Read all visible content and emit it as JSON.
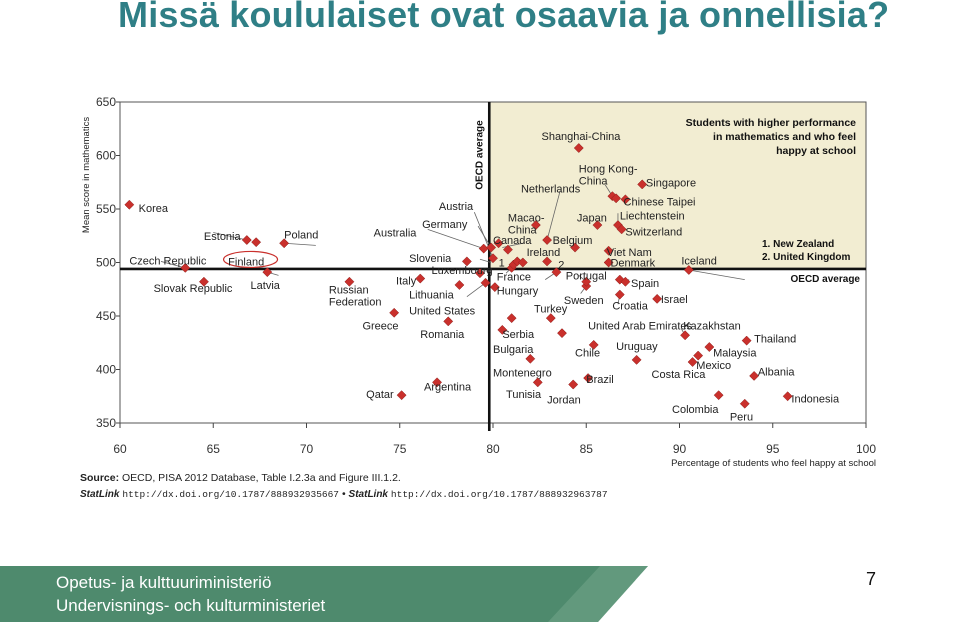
{
  "slide": {
    "title": "Missä koululaiset ovat osaavia ja onnellisia?",
    "page_number": "7",
    "ministry_fi": "Opetus- ja kulttuuriministeriö",
    "ministry_sv": "Undervisnings- och kulturministeriet"
  },
  "source": {
    "label": "Source:",
    "text": "OECD, PISA 2012 Database, Table I.2.3a and Figure III.1.2.",
    "statlink_label": "StatLink",
    "link1": "http://dx.doi.org/10.1787/888932935667",
    "separator": "•",
    "link2": "http://dx.doi.org/10.1787/888932963787"
  },
  "colors": {
    "title": "#2f7f86",
    "marker": "#c9302c",
    "quadrant_fill": "#f2edd2",
    "band": "#4e8a6d"
  },
  "chart_data": {
    "type": "scatter",
    "xlabel": "Percentage of students who feel happy at school",
    "ylabel": "Mean score in mathematics",
    "xlim": [
      60,
      100
    ],
    "ylim": [
      350,
      650
    ],
    "xticks": [
      60,
      65,
      70,
      75,
      80,
      85,
      90,
      95,
      100
    ],
    "yticks": [
      350,
      400,
      450,
      500,
      550,
      600,
      650
    ],
    "oecd_average_x": 79.8,
    "oecd_average_y": 494,
    "oecd_average_label_x": "OECD average",
    "oecd_average_label_y": "OECD average",
    "highlight_quadrant": "top-right",
    "quadrant_note": [
      "Students with higher performance",
      "in mathematics and who feel",
      "happy at school"
    ],
    "footnotes": [
      "1. New Zealand",
      "2. United Kingdom"
    ],
    "points": [
      {
        "x": 60.5,
        "y": 554,
        "label": "Korea",
        "lx": 61.0,
        "ly": 551
      },
      {
        "x": 63.5,
        "y": 495,
        "label": "Czech Republic",
        "lx": 60.5,
        "ly": 502
      },
      {
        "x": 64.5,
        "y": 482,
        "label": "Slovak Republic",
        "lx": 61.8,
        "ly": 476
      },
      {
        "x": 66.8,
        "y": 521,
        "label": "Estonia",
        "lx": 64.5,
        "ly": 525
      },
      {
        "x": 67.3,
        "y": 519,
        "label": "Finland",
        "lx": 65.8,
        "ly": 501
      },
      {
        "x": 67.9,
        "y": 491,
        "label": "Latvia",
        "lx": 67.0,
        "ly": 479
      },
      {
        "x": 68.8,
        "y": 518,
        "label": "Poland",
        "lx": 68.8,
        "ly": 526
      },
      {
        "x": 72.3,
        "y": 482,
        "label": "Russian Federation",
        "lx": 71.2,
        "ly": 475,
        "lines": [
          "Russian",
          "Federation"
        ]
      },
      {
        "x": 74.7,
        "y": 453,
        "label": "Greece",
        "lx": 73.0,
        "ly": 441
      },
      {
        "x": 75.1,
        "y": 376,
        "label": "Qatar",
        "lx": 73.2,
        "ly": 377
      },
      {
        "x": 76.1,
        "y": 485,
        "label": "Italy",
        "lx": 74.8,
        "ly": 483
      },
      {
        "x": 77.0,
        "y": 388,
        "label": "Argentina",
        "lx": 76.3,
        "ly": 384
      },
      {
        "x": 77.6,
        "y": 445,
        "label": "Romania",
        "lx": 76.1,
        "ly": 433
      },
      {
        "x": 78.2,
        "y": 479,
        "label": "Lithuania",
        "lx": 75.5,
        "ly": 470
      },
      {
        "x": 78.6,
        "y": 501,
        "label": "Slovenia",
        "lx": 75.5,
        "ly": 504
      },
      {
        "x": 79.5,
        "y": 513,
        "label": "Australia",
        "lx": 73.6,
        "ly": 528
      },
      {
        "x": 79.3,
        "y": 490,
        "label": "Luxembourg",
        "lx": 76.7,
        "ly": 493
      },
      {
        "x": 79.6,
        "y": 481,
        "label": "United States",
        "lx": 75.5,
        "ly": 455
      },
      {
        "x": 79.9,
        "y": 514,
        "label": "Germany",
        "lx": 76.2,
        "ly": 536
      },
      {
        "x": 80.0,
        "y": 504,
        "label": "Austria",
        "lx": 77.1,
        "ly": 553
      },
      {
        "x": 80.1,
        "y": 477,
        "label": "Hungary",
        "lx": 80.2,
        "ly": 474
      },
      {
        "x": 80.3,
        "y": 518,
        "label": "Canada",
        "lx": 80.0,
        "ly": 521
      },
      {
        "x": 80.5,
        "y": 437,
        "label": "Bulgaria",
        "lx": 80.0,
        "ly": 419
      },
      {
        "x": 81.0,
        "y": 495,
        "label": "France",
        "lx": 80.2,
        "ly": 487
      },
      {
        "x": 81.1,
        "y": 498,
        "label": "1",
        "lx": 80.3,
        "ly": 500
      },
      {
        "x": 81.0,
        "y": 448,
        "label": "Serbia",
        "lx": 80.5,
        "ly": 433
      },
      {
        "x": 81.3,
        "y": 501,
        "label": "Ireland",
        "lx": 81.8,
        "ly": 510
      },
      {
        "x": 81.6,
        "y": 500,
        "label": "",
        "lx": 0,
        "ly": 0
      },
      {
        "x": 80.8,
        "y": 512,
        "label": "",
        "lx": 0,
        "ly": 0
      },
      {
        "x": 82.0,
        "y": 410,
        "label": "Montenegro",
        "lx": 80.0,
        "ly": 397
      },
      {
        "x": 82.3,
        "y": 535,
        "label": "Macao-China",
        "lx": 80.8,
        "ly": 542,
        "lines": [
          "Macao-",
          "China"
        ]
      },
      {
        "x": 82.4,
        "y": 388,
        "label": "Tunisia",
        "lx": 80.7,
        "ly": 377
      },
      {
        "x": 82.9,
        "y": 521,
        "label": "Netherlands",
        "lx": 81.5,
        "ly": 569
      },
      {
        "x": 82.9,
        "y": 501,
        "label": "",
        "lx": 0,
        "ly": 0
      },
      {
        "x": 83.1,
        "y": 448,
        "label": "Turkey",
        "lx": 82.2,
        "ly": 457
      },
      {
        "x": 83.4,
        "y": 491,
        "label": "2",
        "lx": 83.5,
        "ly": 498
      },
      {
        "x": 83.7,
        "y": 434,
        "label": "United Arab Emirates",
        "lx": 85.1,
        "ly": 441
      },
      {
        "x": 84.3,
        "y": 386,
        "label": "Jordan",
        "lx": 82.9,
        "ly": 372
      },
      {
        "x": 84.4,
        "y": 514,
        "label": "Belgium",
        "lx": 83.2,
        "ly": 521
      },
      {
        "x": 84.6,
        "y": 607,
        "label": "Shanghai-China",
        "lx": 82.6,
        "ly": 618
      },
      {
        "x": 85.0,
        "y": 478,
        "label": "Sweden",
        "lx": 83.8,
        "ly": 465
      },
      {
        "x": 85.0,
        "y": 482,
        "label": "Portugal",
        "lx": 83.9,
        "ly": 488
      },
      {
        "x": 85.1,
        "y": 392,
        "label": "Brazil",
        "lx": 85.0,
        "ly": 391
      },
      {
        "x": 85.4,
        "y": 423,
        "label": "Chile",
        "lx": 84.4,
        "ly": 416
      },
      {
        "x": 85.6,
        "y": 535,
        "label": "Japan",
        "lx": 84.5,
        "ly": 542
      },
      {
        "x": 86.2,
        "y": 511,
        "label": "Viet Nam",
        "lx": 86.1,
        "ly": 510
      },
      {
        "x": 86.4,
        "y": 562,
        "label": "Hong Kong-China",
        "lx": 84.6,
        "ly": 588,
        "lines": [
          "Hong Kong-",
          "China"
        ]
      },
      {
        "x": 86.6,
        "y": 560,
        "label": "",
        "lx": 0,
        "ly": 0
      },
      {
        "x": 86.2,
        "y": 500,
        "label": "Denmark",
        "lx": 86.3,
        "ly": 500
      },
      {
        "x": 86.7,
        "y": 535,
        "label": "Liechtenstein",
        "lx": 86.8,
        "ly": 544
      },
      {
        "x": 86.9,
        "y": 531,
        "label": "Switzerland",
        "lx": 87.1,
        "ly": 529
      },
      {
        "x": 86.8,
        "y": 484,
        "label": "Spain",
        "lx": 87.4,
        "ly": 481
      },
      {
        "x": 86.8,
        "y": 470,
        "label": "Croatia",
        "lx": 86.4,
        "ly": 460
      },
      {
        "x": 87.1,
        "y": 482,
        "label": "",
        "lx": 0,
        "ly": 0
      },
      {
        "x": 87.1,
        "y": 559,
        "label": "Chinese Taipei",
        "lx": 87.0,
        "ly": 557
      },
      {
        "x": 87.7,
        "y": 409,
        "label": "Uruguay",
        "lx": 86.6,
        "ly": 422
      },
      {
        "x": 88.0,
        "y": 573,
        "label": "Singapore",
        "lx": 88.2,
        "ly": 575
      },
      {
        "x": 88.8,
        "y": 466,
        "label": "Israel",
        "lx": 89.0,
        "ly": 466
      },
      {
        "x": 90.5,
        "y": 493,
        "label": "Iceland",
        "lx": 90.1,
        "ly": 502
      },
      {
        "x": 90.3,
        "y": 432,
        "label": "Kazakhstan",
        "lx": 90.2,
        "ly": 441
      },
      {
        "x": 90.7,
        "y": 407,
        "label": "Costa Rica",
        "lx": 88.5,
        "ly": 396
      },
      {
        "x": 91.0,
        "y": 413,
        "label": "Mexico",
        "lx": 90.9,
        "ly": 404
      },
      {
        "x": 91.6,
        "y": 421,
        "label": "Malaysia",
        "lx": 91.8,
        "ly": 416
      },
      {
        "x": 92.1,
        "y": 376,
        "label": "Colombia",
        "lx": 89.6,
        "ly": 363
      },
      {
        "x": 93.5,
        "y": 368,
        "label": "Peru",
        "lx": 92.7,
        "ly": 356
      },
      {
        "x": 93.6,
        "y": 427,
        "label": "Thailand",
        "lx": 94.0,
        "ly": 429
      },
      {
        "x": 94.0,
        "y": 394,
        "label": "Albania",
        "lx": 94.2,
        "ly": 398
      },
      {
        "x": 95.8,
        "y": 375,
        "label": "Indonesia",
        "lx": 96.0,
        "ly": 373
      }
    ],
    "leaders": [
      {
        "from": [
          62.2,
          501
        ],
        "to": [
          63.5,
          495
        ]
      },
      {
        "from": [
          65.0,
          528
        ],
        "to": [
          66.8,
          521
        ]
      },
      {
        "from": [
          68.5,
          488
        ],
        "to": [
          67.9,
          491
        ]
      },
      {
        "from": [
          70.5,
          516
        ],
        "to": [
          68.8,
          518
        ]
      },
      {
        "from": [
          76.5,
          531
        ],
        "to": [
          79.5,
          513
        ]
      },
      {
        "from": [
          79.2,
          534
        ],
        "to": [
          79.9,
          514
        ]
      },
      {
        "from": [
          79.0,
          547
        ],
        "to": [
          80.0,
          504
        ]
      },
      {
        "from": [
          79.3,
          503
        ],
        "to": [
          79.9,
          500
        ]
      },
      {
        "from": [
          79.6,
          492
        ],
        "to": [
          79.9,
          492
        ]
      },
      {
        "from": [
          78.6,
          468
        ],
        "to": [
          79.6,
          481
        ]
      },
      {
        "from": [
          83.6,
          567
        ],
        "to": [
          82.9,
          521
        ]
      },
      {
        "from": [
          81.6,
          518
        ],
        "to": [
          80.5,
          514
        ]
      },
      {
        "from": [
          80.7,
          490
        ],
        "to": [
          81.0,
          495
        ]
      },
      {
        "from": [
          82.8,
          484
        ],
        "to": [
          83.4,
          491
        ]
      },
      {
        "from": [
          84.6,
          488
        ],
        "to": [
          85.0,
          482
        ]
      },
      {
        "from": [
          84.7,
          471
        ],
        "to": [
          85.0,
          478
        ]
      },
      {
        "from": [
          86.7,
          461
        ],
        "to": [
          86.8,
          470
        ]
      },
      {
        "from": [
          87.3,
          484
        ],
        "to": [
          87.1,
          482
        ]
      },
      {
        "from": [
          86.0,
          573
        ],
        "to": [
          86.4,
          562
        ]
      },
      {
        "from": [
          86.7,
          546
        ],
        "to": [
          86.7,
          535
        ]
      },
      {
        "from": [
          93.5,
          484
        ],
        "to": [
          90.5,
          493
        ]
      },
      {
        "from": [
          90.1,
          438
        ],
        "to": [
          90.3,
          432
        ]
      }
    ],
    "finland_highlight": {
      "x": 67.0,
      "y": 501
    }
  }
}
